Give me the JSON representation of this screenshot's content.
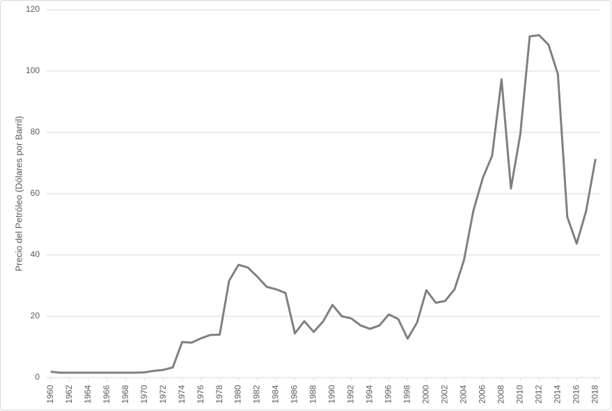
{
  "chart_data": {
    "type": "line",
    "y_label": "Precio del Petróleo (Dólares por Barril)",
    "x": [
      1960,
      1961,
      1962,
      1963,
      1964,
      1965,
      1966,
      1967,
      1968,
      1969,
      1970,
      1971,
      1972,
      1973,
      1974,
      1975,
      1976,
      1977,
      1978,
      1979,
      1980,
      1981,
      1982,
      1983,
      1984,
      1985,
      1986,
      1987,
      1988,
      1989,
      1990,
      1991,
      1992,
      1993,
      1994,
      1995,
      1996,
      1997,
      1998,
      1999,
      2000,
      2001,
      2002,
      2003,
      2004,
      2005,
      2006,
      2007,
      2008,
      2009,
      2010,
      2011,
      2012,
      2013,
      2014,
      2015,
      2016,
      2017,
      2018
    ],
    "values": [
      1.9,
      1.6,
      1.6,
      1.6,
      1.6,
      1.6,
      1.6,
      1.6,
      1.6,
      1.6,
      1.7,
      2.2,
      2.5,
      3.3,
      11.6,
      11.4,
      12.8,
      13.9,
      14.0,
      31.6,
      36.8,
      35.9,
      32.9,
      29.6,
      28.8,
      27.6,
      14.4,
      18.4,
      14.9,
      18.3,
      23.7,
      20.0,
      19.3,
      17.0,
      15.9,
      17.0,
      20.6,
      19.1,
      12.7,
      17.9,
      28.5,
      24.4,
      25.0,
      28.8,
      38.3,
      54.4,
      65.1,
      72.4,
      97.3,
      61.7,
      79.4,
      111.3,
      111.7,
      108.6,
      99.0,
      52.4,
      43.7,
      54.3,
      71.3
    ],
    "color": "#7f7f7f",
    "xlim": [
      1959.5,
      2018.5
    ],
    "xticks": [
      1960,
      1962,
      1964,
      1966,
      1968,
      1970,
      1972,
      1974,
      1976,
      1978,
      1980,
      1982,
      1984,
      1986,
      1988,
      1990,
      1992,
      1994,
      1996,
      1998,
      2000,
      2002,
      2004,
      2006,
      2008,
      2010,
      2012,
      2014,
      2016,
      2018
    ],
    "ylim": [
      0,
      120
    ],
    "yticks": [
      0,
      20,
      40,
      60,
      80,
      100,
      120
    ],
    "grid": true
  }
}
